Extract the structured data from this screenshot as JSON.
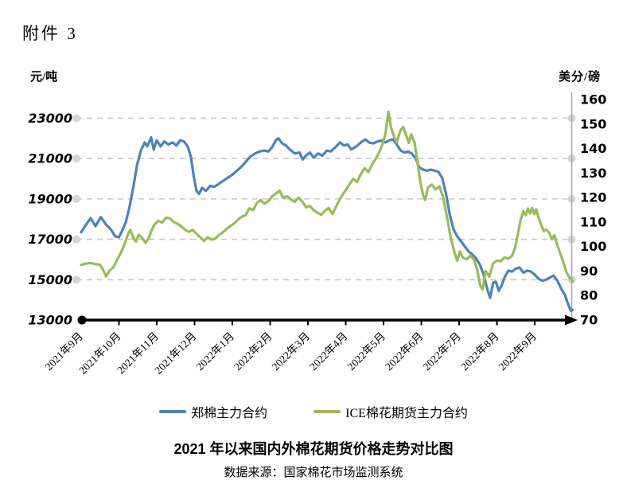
{
  "attachment_label": "附件 3",
  "chart_data": {
    "type": "line",
    "title": "2021 年以来国内外棉花期货价格走势对比图",
    "source": "数据来源：国家棉花市场监测系统",
    "left_axis": {
      "unit": "元/吨",
      "min": 13000,
      "max": 23000,
      "ticks": [
        13000,
        15000,
        17000,
        19000,
        21000,
        23000
      ]
    },
    "right_axis": {
      "unit": "美分/磅",
      "min": 70,
      "max": 160,
      "ticks": [
        70,
        80,
        90,
        100,
        110,
        120,
        130,
        140,
        150,
        160
      ]
    },
    "x_ticks": [
      "2021年9月",
      "2021年10月",
      "2021年11月",
      "2021年12月",
      "2022年1月",
      "2022年2月",
      "2022年3月",
      "2022年4月",
      "2022年5月",
      "2022年6月",
      "2022年7月",
      "2022年8月",
      "2022年9月"
    ],
    "grid": {
      "values_left": [
        15000,
        17000,
        19000,
        21000,
        23000
      ],
      "style": "dashed",
      "endpoint_markers": true
    },
    "colors": {
      "czce": "#4E81BD",
      "ice": "#9BBB59",
      "gridline": "#C9C9C9",
      "grid_dot": "#D5D5D5",
      "right_axis_line": "#A8A8A8",
      "x_axis": "#000000"
    },
    "series": [
      {
        "id": "czce",
        "name": "郑棉主力合约",
        "axis": "left",
        "color": "#4E81BD",
        "unit": "元/吨",
        "points": [
          [
            0,
            17350
          ],
          [
            0.12,
            17700
          ],
          [
            0.25,
            18050
          ],
          [
            0.38,
            17650
          ],
          [
            0.52,
            18100
          ],
          [
            0.65,
            17750
          ],
          [
            0.78,
            17500
          ],
          [
            0.9,
            17150
          ],
          [
            1.0,
            17100
          ],
          [
            1.08,
            17400
          ],
          [
            1.18,
            17850
          ],
          [
            1.28,
            18600
          ],
          [
            1.38,
            19600
          ],
          [
            1.48,
            20700
          ],
          [
            1.58,
            21400
          ],
          [
            1.68,
            21800
          ],
          [
            1.75,
            21600
          ],
          [
            1.85,
            22050
          ],
          [
            1.92,
            21450
          ],
          [
            2.0,
            21900
          ],
          [
            2.1,
            21600
          ],
          [
            2.2,
            21850
          ],
          [
            2.3,
            21700
          ],
          [
            2.42,
            21800
          ],
          [
            2.52,
            21650
          ],
          [
            2.62,
            21900
          ],
          [
            2.72,
            21850
          ],
          [
            2.82,
            21600
          ],
          [
            2.9,
            21100
          ],
          [
            2.98,
            20100
          ],
          [
            3.05,
            19400
          ],
          [
            3.12,
            19250
          ],
          [
            3.2,
            19550
          ],
          [
            3.3,
            19400
          ],
          [
            3.42,
            19650
          ],
          [
            3.52,
            19600
          ],
          [
            3.64,
            19750
          ],
          [
            3.76,
            19900
          ],
          [
            3.88,
            20050
          ],
          [
            4.0,
            20200
          ],
          [
            4.12,
            20400
          ],
          [
            4.24,
            20600
          ],
          [
            4.36,
            20850
          ],
          [
            4.48,
            21100
          ],
          [
            4.6,
            21250
          ],
          [
            4.72,
            21350
          ],
          [
            4.84,
            21400
          ],
          [
            4.95,
            21350
          ],
          [
            5.05,
            21550
          ],
          [
            5.15,
            21900
          ],
          [
            5.22,
            22000
          ],
          [
            5.32,
            21750
          ],
          [
            5.42,
            21650
          ],
          [
            5.52,
            21450
          ],
          [
            5.65,
            21250
          ],
          [
            5.78,
            21300
          ],
          [
            5.86,
            20950
          ],
          [
            5.95,
            21150
          ],
          [
            6.05,
            21300
          ],
          [
            6.15,
            21050
          ],
          [
            6.27,
            21250
          ],
          [
            6.38,
            21150
          ],
          [
            6.5,
            21400
          ],
          [
            6.6,
            21350
          ],
          [
            6.72,
            21550
          ],
          [
            6.85,
            21800
          ],
          [
            6.95,
            21650
          ],
          [
            7.05,
            21700
          ],
          [
            7.15,
            21450
          ],
          [
            7.28,
            21600
          ],
          [
            7.4,
            21800
          ],
          [
            7.52,
            21950
          ],
          [
            7.62,
            21800
          ],
          [
            7.72,
            21750
          ],
          [
            7.85,
            21850
          ],
          [
            7.95,
            21900
          ],
          [
            8.05,
            21800
          ],
          [
            8.15,
            21900
          ],
          [
            8.25,
            21950
          ],
          [
            8.35,
            21700
          ],
          [
            8.45,
            21400
          ],
          [
            8.55,
            21300
          ],
          [
            8.65,
            21350
          ],
          [
            8.75,
            21250
          ],
          [
            8.85,
            21000
          ],
          [
            8.95,
            20550
          ],
          [
            9.05,
            20450
          ],
          [
            9.15,
            20400
          ],
          [
            9.25,
            20450
          ],
          [
            9.35,
            20400
          ],
          [
            9.45,
            20350
          ],
          [
            9.55,
            20050
          ],
          [
            9.65,
            19300
          ],
          [
            9.75,
            18250
          ],
          [
            9.85,
            17500
          ],
          [
            9.95,
            17150
          ],
          [
            10.05,
            16900
          ],
          [
            10.15,
            16650
          ],
          [
            10.25,
            16400
          ],
          [
            10.35,
            16250
          ],
          [
            10.45,
            16050
          ],
          [
            10.55,
            15750
          ],
          [
            10.65,
            15250
          ],
          [
            10.75,
            14500
          ],
          [
            10.82,
            14100
          ],
          [
            10.9,
            14850
          ],
          [
            10.97,
            14900
          ],
          [
            11.05,
            14450
          ],
          [
            11.12,
            14700
          ],
          [
            11.2,
            15100
          ],
          [
            11.3,
            15450
          ],
          [
            11.4,
            15400
          ],
          [
            11.5,
            15550
          ],
          [
            11.6,
            15600
          ],
          [
            11.7,
            15350
          ],
          [
            11.8,
            15450
          ],
          [
            11.9,
            15400
          ],
          [
            12.0,
            15250
          ],
          [
            12.1,
            15050
          ],
          [
            12.2,
            14950
          ],
          [
            12.3,
            15000
          ],
          [
            12.4,
            15100
          ],
          [
            12.5,
            15200
          ],
          [
            12.6,
            14950
          ],
          [
            12.7,
            14550
          ],
          [
            12.8,
            14250
          ],
          [
            12.9,
            13700
          ],
          [
            12.96,
            13450
          ],
          [
            13.0,
            13500
          ]
        ]
      },
      {
        "id": "ice",
        "name": "ICE棉花期货主力合约",
        "axis": "right",
        "color": "#9BBB59",
        "unit": "美分/磅",
        "points": [
          [
            0,
            92.5
          ],
          [
            0.12,
            93
          ],
          [
            0.25,
            93.3
          ],
          [
            0.38,
            92.8
          ],
          [
            0.5,
            92.6
          ],
          [
            0.58,
            90.5
          ],
          [
            0.66,
            87.8
          ],
          [
            0.75,
            90.2
          ],
          [
            0.85,
            91.5
          ],
          [
            0.95,
            94.5
          ],
          [
            1.05,
            97.5
          ],
          [
            1.15,
            101
          ],
          [
            1.25,
            105.5
          ],
          [
            1.3,
            106.8
          ],
          [
            1.38,
            103.5
          ],
          [
            1.45,
            102
          ],
          [
            1.52,
            104.8
          ],
          [
            1.6,
            103.8
          ],
          [
            1.7,
            101.5
          ],
          [
            1.78,
            103.2
          ],
          [
            1.86,
            106.5
          ],
          [
            1.94,
            109
          ],
          [
            2.04,
            110.5
          ],
          [
            2.14,
            109.8
          ],
          [
            2.25,
            111.8
          ],
          [
            2.35,
            111.5
          ],
          [
            2.45,
            110
          ],
          [
            2.55,
            109.3
          ],
          [
            2.65,
            108.2
          ],
          [
            2.75,
            106.8
          ],
          [
            2.85,
            106
          ],
          [
            2.95,
            106.8
          ],
          [
            3.05,
            105.2
          ],
          [
            3.15,
            103.8
          ],
          [
            3.25,
            102.3
          ],
          [
            3.35,
            103.8
          ],
          [
            3.45,
            102.8
          ],
          [
            3.55,
            103.2
          ],
          [
            3.65,
            104.8
          ],
          [
            3.75,
            105.8
          ],
          [
            3.85,
            107.2
          ],
          [
            3.95,
            108.4
          ],
          [
            4.05,
            109.4
          ],
          [
            4.15,
            111
          ],
          [
            4.25,
            112.2
          ],
          [
            4.35,
            112.8
          ],
          [
            4.45,
            115.6
          ],
          [
            4.55,
            114.8
          ],
          [
            4.65,
            117.8
          ],
          [
            4.75,
            119
          ],
          [
            4.85,
            117.5
          ],
          [
            4.95,
            118.5
          ],
          [
            5.05,
            120.5
          ],
          [
            5.15,
            121.6
          ],
          [
            5.25,
            122.8
          ],
          [
            5.35,
            119.8
          ],
          [
            5.45,
            120.6
          ],
          [
            5.55,
            119.2
          ],
          [
            5.65,
            118.2
          ],
          [
            5.75,
            120
          ],
          [
            5.85,
            118.4
          ],
          [
            5.95,
            116
          ],
          [
            6.05,
            116.6
          ],
          [
            6.15,
            114.9
          ],
          [
            6.25,
            113.8
          ],
          [
            6.35,
            113
          ],
          [
            6.45,
            114.6
          ],
          [
            6.55,
            115.7
          ],
          [
            6.65,
            113.3
          ],
          [
            6.75,
            116.5
          ],
          [
            6.85,
            119.5
          ],
          [
            6.93,
            121.5
          ],
          [
            7.0,
            123
          ],
          [
            7.1,
            125.5
          ],
          [
            7.2,
            127.6
          ],
          [
            7.3,
            126.4
          ],
          [
            7.4,
            129.6
          ],
          [
            7.5,
            132
          ],
          [
            7.6,
            130.4
          ],
          [
            7.7,
            133.6
          ],
          [
            7.8,
            136
          ],
          [
            7.9,
            139
          ],
          [
            7.98,
            142
          ],
          [
            8.05,
            146
          ],
          [
            8.13,
            155
          ],
          [
            8.2,
            148.5
          ],
          [
            8.28,
            144.8
          ],
          [
            8.35,
            142.5
          ],
          [
            8.45,
            147.5
          ],
          [
            8.52,
            148.8
          ],
          [
            8.6,
            145.2
          ],
          [
            8.67,
            142.3
          ],
          [
            8.73,
            145.8
          ],
          [
            8.82,
            142.5
          ],
          [
            8.9,
            134
          ],
          [
            8.98,
            126
          ],
          [
            9.05,
            120.8
          ],
          [
            9.1,
            119
          ],
          [
            9.18,
            124.2
          ],
          [
            9.28,
            125.3
          ],
          [
            9.38,
            123.3
          ],
          [
            9.48,
            124.6
          ],
          [
            9.58,
            120
          ],
          [
            9.68,
            112
          ],
          [
            9.78,
            103.5
          ],
          [
            9.88,
            97.5
          ],
          [
            9.95,
            94.2
          ],
          [
            10.02,
            98
          ],
          [
            10.1,
            95.5
          ],
          [
            10.2,
            94.8
          ],
          [
            10.3,
            96.3
          ],
          [
            10.4,
            94.5
          ],
          [
            10.48,
            90.5
          ],
          [
            10.56,
            84
          ],
          [
            10.62,
            82.5
          ],
          [
            10.7,
            90
          ],
          [
            10.8,
            87.7
          ],
          [
            10.9,
            93.2
          ],
          [
            11.0,
            94.3
          ],
          [
            11.1,
            94
          ],
          [
            11.2,
            95.5
          ],
          [
            11.3,
            95
          ],
          [
            11.4,
            96.2
          ],
          [
            11.48,
            99.5
          ],
          [
            11.56,
            105.5
          ],
          [
            11.63,
            111
          ],
          [
            11.7,
            114.5
          ],
          [
            11.76,
            112.8
          ],
          [
            11.82,
            115.5
          ],
          [
            11.88,
            113.5
          ],
          [
            11.93,
            115.8
          ],
          [
            11.99,
            113.2
          ],
          [
            12.04,
            115.2
          ],
          [
            12.1,
            111.8
          ],
          [
            12.17,
            109
          ],
          [
            12.24,
            106.3
          ],
          [
            12.3,
            107
          ],
          [
            12.38,
            105.8
          ],
          [
            12.45,
            103
          ],
          [
            12.52,
            104.6
          ],
          [
            12.6,
            100.5
          ],
          [
            12.68,
            97
          ],
          [
            12.76,
            93.5
          ],
          [
            12.84,
            89.5
          ],
          [
            12.92,
            87.3
          ],
          [
            13.0,
            86
          ]
        ]
      }
    ]
  },
  "legend": {
    "czce_label": "郑棉主力合约",
    "ice_label": "ICE棉花期货主力合约"
  }
}
